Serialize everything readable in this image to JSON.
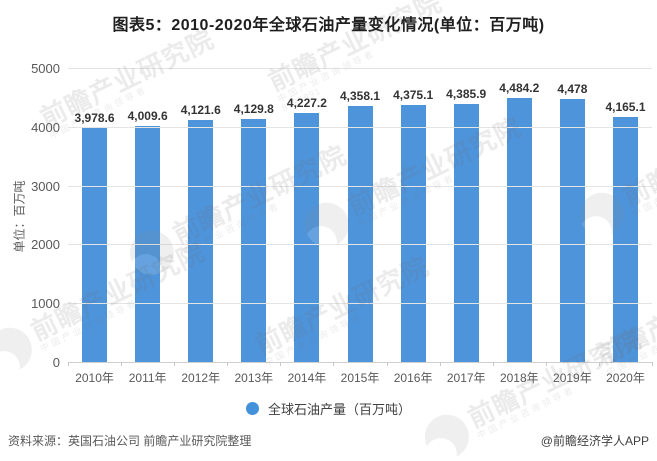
{
  "title": "图表5：2010-2020年全球石油产量变化情况(单位：百万吨)",
  "chart_data": {
    "type": "bar",
    "title": "图表5：2010-2020年全球石油产量变化情况(单位：百万吨)",
    "categories": [
      "2010年",
      "2011年",
      "2012年",
      "2013年",
      "2014年",
      "2015年",
      "2016年",
      "2017年",
      "2018年",
      "2019年",
      "2020年"
    ],
    "values": [
      3978.6,
      4009.6,
      4121.6,
      4129.8,
      4227.2,
      4358.1,
      4375.1,
      4385.9,
      4484.2,
      4478,
      4165.1
    ],
    "value_labels": [
      "3,978.6",
      "4,009.6",
      "4,121.6",
      "4,129.8",
      "4,227.2",
      "4,358.1",
      "4,375.1",
      "4,385.9",
      "4,484.2",
      "4,478",
      "4,165.1"
    ],
    "series_name": "全球石油产量（百万吨）",
    "xlabel": "",
    "ylabel": "单位：百万吨",
    "ylim": [
      0,
      5000
    ],
    "yticks": [
      0,
      1000,
      2000,
      3000,
      4000,
      5000
    ],
    "grid": true,
    "legend_position": "bottom",
    "bar_color": "#4E94DB"
  },
  "axes": {
    "y_title": "单位：百万吨"
  },
  "legend": {
    "label": "全球石油产量（百万吨）",
    "marker_color": "#4390DB"
  },
  "footer": {
    "source": "资料来源：英国石油公司 前瞻产业研究院整理",
    "credit": "@前瞻经济学人APP"
  },
  "watermark": {
    "text": "前瞻产业研究院",
    "subtext": "中国产业咨询领导者",
    "number": "8195991"
  }
}
